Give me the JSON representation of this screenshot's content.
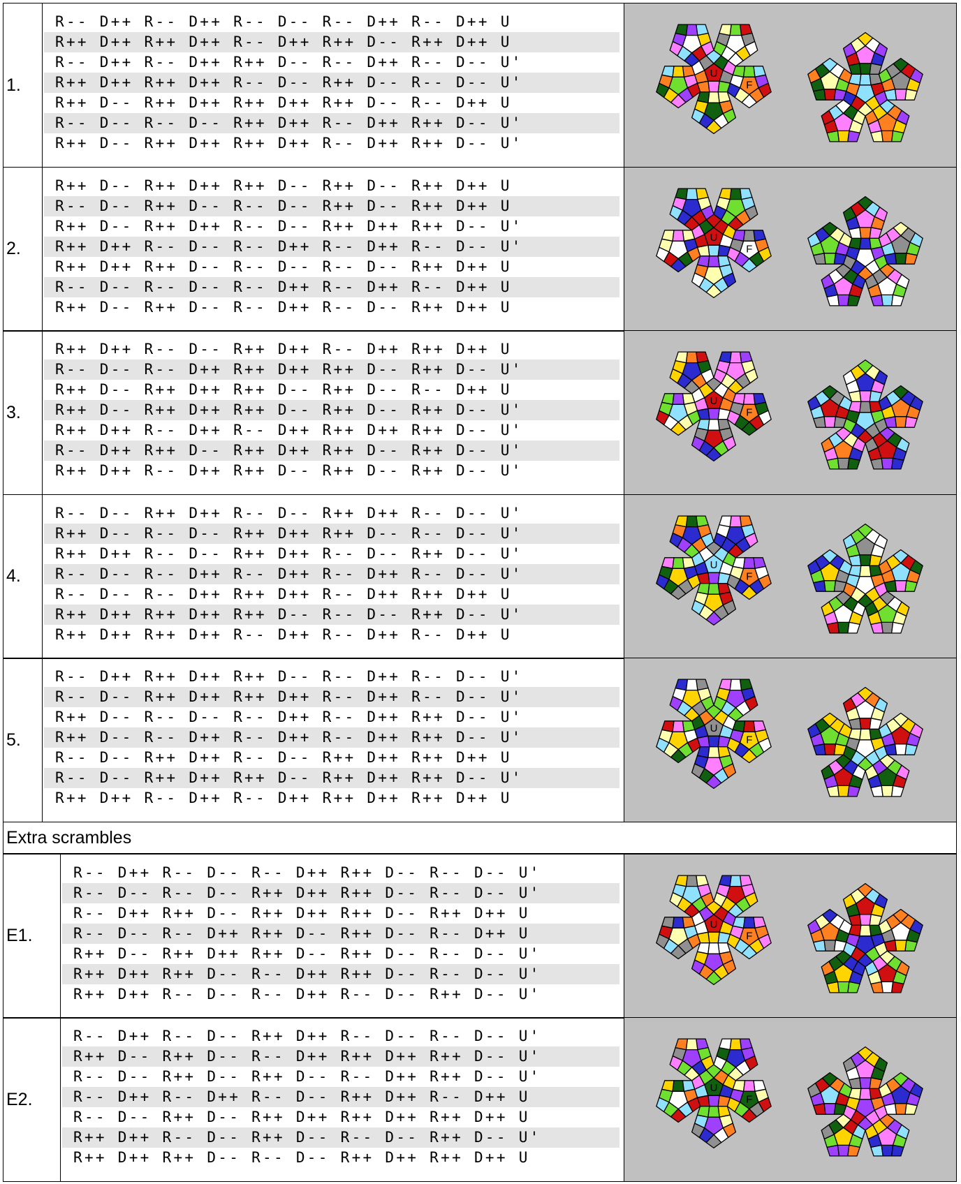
{
  "rows": [
    {
      "label": "1.",
      "faces": [
        "U",
        "F"
      ],
      "lines": [
        "R-- D++ R-- D++ R-- D-- R-- D++ R-- D++ U",
        "R++ D++ R++ D++ R-- D++ R++ D-- R++ D++ U",
        "R-- D++ R-- D++ R++ D-- R-- D++ R-- D-- U'",
        "R++ D++ R++ D++ R-- D-- R++ D-- R-- D-- U'",
        "R++ D-- R++ D++ R++ D++ R++ D-- R-- D++ U",
        "R-- D-- R-- D-- R++ D++ R-- D++ R++ D-- U'",
        "R++ D-- R++ D++ R++ D++ R-- D++ R++ D-- U'"
      ]
    },
    {
      "label": "2.",
      "faces": [
        "U",
        "F"
      ],
      "lines": [
        "R++ D-- R++ D++ R++ D-- R++ D-- R++ D++ U",
        "R-- D-- R++ D-- R-- D-- R++ D-- R++ D++ U",
        "R++ D-- R++ D++ R-- D-- R++ D++ R++ D-- U'",
        "R++ D++ R-- D-- R-- D++ R-- D++ R-- D-- U'",
        "R++ D++ R++ D-- R-- D-- R-- D-- R++ D++ U",
        "R-- D-- R-- D-- R-- D++ R-- D++ R-- D++ U",
        "R++ D-- R++ D-- R-- D++ R-- D-- R++ D++ U"
      ]
    },
    {
      "label": "3.",
      "faces": [
        "U",
        "F"
      ],
      "lines": [
        "R++ D++ R-- D-- R++ D++ R-- D++ R++ D++ U",
        "R-- D-- R-- D++ R++ D++ R++ D-- R++ D-- U'",
        "R++ D-- R++ D++ R++ D-- R++ D-- R-- D++ U",
        "R++ D-- R++ D++ R++ D-- R++ D-- R++ D-- U'",
        "R++ D++ R-- D++ R-- D++ R++ D++ R++ D-- U'",
        "R-- D++ R++ D-- R++ D++ R++ D-- R++ D-- U'",
        "R++ D++ R-- D++ R++ D-- R++ D-- R++ D-- U'"
      ]
    },
    {
      "label": "4.",
      "faces": [
        "U",
        "F"
      ],
      "lines": [
        "R-- D-- R++ D++ R-- D-- R++ D++ R-- D-- U'",
        "R++ D-- R-- D-- R++ D++ R++ D-- R-- D-- U'",
        "R++ D++ R-- D-- R++ D++ R-- D-- R++ D-- U'",
        "R-- D-- R-- D++ R-- D++ R-- D++ R-- D-- U'",
        "R-- D-- R-- D++ R++ D++ R-- D++ R++ D++ U",
        "R++ D++ R++ D++ R++ D-- R-- D-- R++ D-- U'",
        "R++ D++ R++ D++ R-- D++ R-- D++ R-- D++ U"
      ]
    },
    {
      "label": "5.",
      "faces": [
        "U",
        "F"
      ],
      "lines": [
        "R-- D++ R++ D++ R++ D-- R-- D++ R-- D-- U'",
        "R-- D-- R++ D++ R++ D++ R-- D++ R-- D-- U'",
        "R++ D-- R-- D-- R-- D++ R-- D++ R++ D-- U'",
        "R++ D-- R-- D++ R-- D++ R-- D++ R++ D-- U'",
        "R-- D-- R++ D++ R-- D-- R++ D++ R++ D++ U",
        "R-- D-- R++ D++ R++ D-- R++ D++ R++ D-- U'",
        "R++ D++ R-- D++ R-- D++ R++ D++ R++ D++ U"
      ]
    }
  ],
  "extra_heading": "Extra scrambles",
  "extra_rows": [
    {
      "label": "E1.",
      "faces": [
        "U",
        "F"
      ],
      "lines": [
        "R-- D++ R-- D-- R-- D++ R++ D-- R-- D-- U'",
        "R-- D-- R-- D-- R++ D++ R++ D-- R-- D-- U'",
        "R-- D++ R++ D-- R++ D++ R++ D-- R++ D++ U",
        "R-- D-- R-- D++ R++ D-- R++ D-- R-- D++ U",
        "R++ D-- R++ D++ R++ D-- R++ D-- R-- D-- U'",
        "R++ D++ R++ D-- R-- D++ R++ D-- R-- D-- U'",
        "R++ D++ R-- D-- R-- D++ R-- D-- R++ D-- U'"
      ]
    },
    {
      "label": "E2.",
      "faces": [
        "U",
        "F"
      ],
      "lines": [
        "R-- D++ R-- D-- R++ D++ R-- D-- R-- D-- U'",
        "R++ D-- R++ D-- R-- D++ R++ D++ R++ D-- U'",
        "R-- D-- R++ D-- R++ D-- R-- D++ R++ D-- U'",
        "R-- D++ R-- D++ R-- D-- R++ D++ R-- D++ U",
        "R-- D-- R++ D-- R++ D++ R++ D++ R++ D++ U",
        "R++ D++ R-- D-- R++ D-- R-- D-- R++ D-- U'",
        "R++ D++ R++ D-- R-- D-- R++ D++ R++ D++ U"
      ]
    }
  ]
}
